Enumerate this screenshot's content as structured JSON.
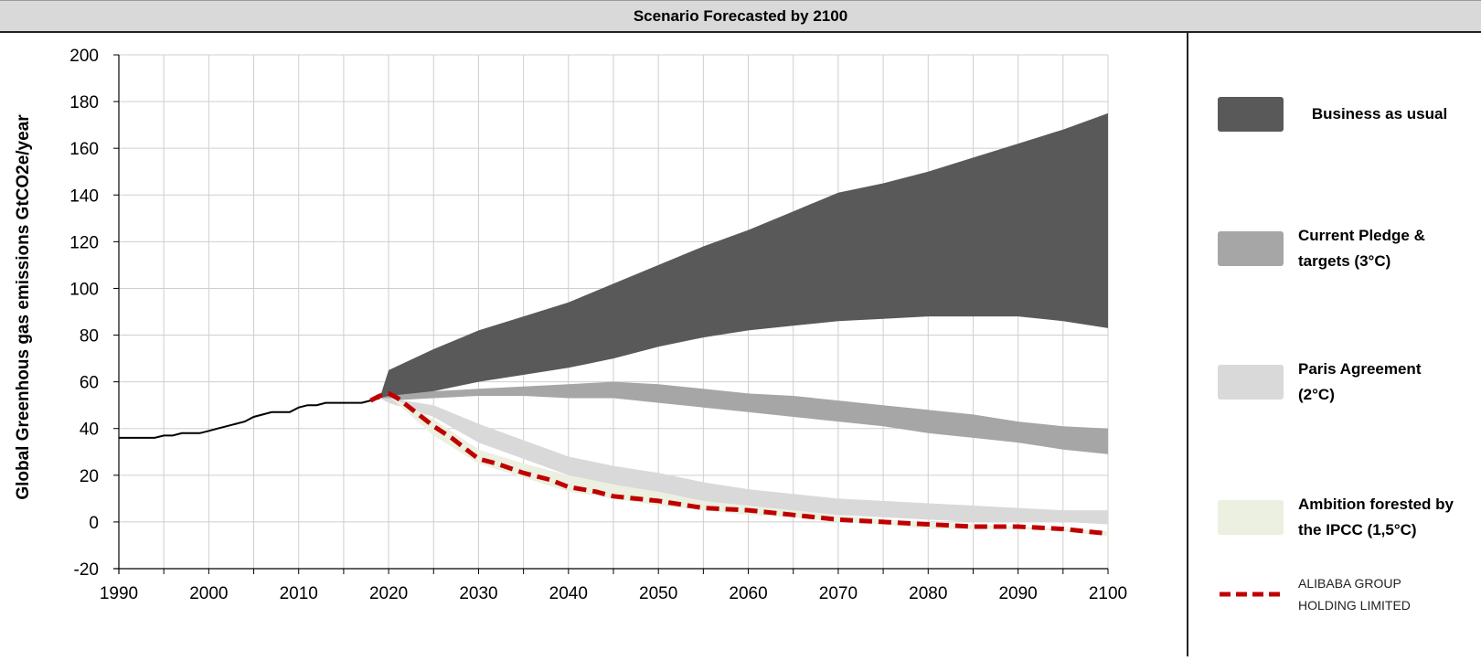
{
  "chart_data": {
    "type": "area",
    "title": "Scenario Forecasted by 2100",
    "xlabel": "",
    "ylabel": "Global Greenhous gas emissions GtCO2e/year",
    "xlim": [
      1990,
      2100
    ],
    "ylim": [
      -20,
      200
    ],
    "x_ticks": [
      1990,
      2000,
      2010,
      2020,
      2030,
      2040,
      2050,
      2060,
      2070,
      2080,
      2090,
      2100
    ],
    "y_ticks": [
      -20,
      0,
      20,
      40,
      60,
      80,
      100,
      120,
      140,
      160,
      180,
      200
    ],
    "grid": true,
    "legend_position": "right",
    "historical": {
      "x": [
        1990,
        1991,
        1992,
        1993,
        1994,
        1995,
        1996,
        1997,
        1998,
        1999,
        2000,
        2001,
        2002,
        2003,
        2004,
        2005,
        2006,
        2007,
        2008,
        2009,
        2010,
        2011,
        2012,
        2013,
        2014,
        2015,
        2016,
        2017,
        2018,
        2019
      ],
      "y": [
        36,
        36,
        36,
        36,
        36,
        37,
        37,
        38,
        38,
        38,
        39,
        40,
        41,
        42,
        43,
        45,
        46,
        47,
        47,
        47,
        49,
        50,
        50,
        51,
        51,
        51,
        51,
        51,
        52,
        53
      ]
    },
    "bands": [
      {
        "name": "Business as usual",
        "color": "#595959",
        "x": [
          2019,
          2020,
          2025,
          2030,
          2035,
          2040,
          2045,
          2050,
          2055,
          2060,
          2065,
          2070,
          2075,
          2080,
          2085,
          2090,
          2095,
          2100
        ],
        "upper": [
          53,
          65,
          74,
          82,
          88,
          94,
          102,
          110,
          118,
          125,
          133,
          141,
          145,
          150,
          156,
          162,
          168,
          175
        ],
        "lower": [
          53,
          53,
          56,
          60,
          63,
          66,
          70,
          75,
          79,
          82,
          84,
          86,
          87,
          88,
          88,
          88,
          86,
          83
        ]
      },
      {
        "name": "Current Pledge & targets (3°C)",
        "color": "#a6a6a6",
        "x": [
          2019,
          2020,
          2025,
          2030,
          2035,
          2040,
          2045,
          2050,
          2055,
          2060,
          2065,
          2070,
          2075,
          2080,
          2085,
          2090,
          2095,
          2100
        ],
        "upper": [
          53,
          54,
          56,
          57,
          58,
          59,
          60,
          59,
          57,
          55,
          54,
          52,
          50,
          48,
          46,
          43,
          41,
          40
        ],
        "lower": [
          53,
          52,
          53,
          54,
          54,
          53,
          53,
          51,
          49,
          47,
          45,
          43,
          41,
          38,
          36,
          34,
          31,
          29
        ]
      },
      {
        "name": "Paris Agreement (2°C)",
        "color": "#d9d9d9",
        "x": [
          2019,
          2020,
          2025,
          2030,
          2035,
          2040,
          2045,
          2050,
          2055,
          2060,
          2065,
          2070,
          2075,
          2080,
          2085,
          2090,
          2095,
          2100
        ],
        "upper": [
          53,
          53,
          50,
          42,
          35,
          28,
          24,
          21,
          17,
          14,
          12,
          10,
          9,
          8,
          7,
          6,
          5,
          5
        ],
        "lower": [
          53,
          51,
          45,
          34,
          27,
          20,
          16,
          12,
          8,
          6,
          4,
          3,
          2,
          1,
          0,
          0,
          0,
          -1
        ]
      },
      {
        "name": "Ambition forested by the IPCC (1,5°C)",
        "color": "#ebf0e0",
        "x": [
          2019,
          2020,
          2025,
          2030,
          2035,
          2040,
          2045,
          2050,
          2055,
          2060,
          2065,
          2070,
          2075,
          2080,
          2085,
          2090,
          2095,
          2100
        ],
        "upper": [
          53,
          54,
          44,
          31,
          25,
          20,
          16,
          13,
          9,
          7,
          5,
          3,
          1,
          0,
          -1,
          -2,
          -3,
          -4
        ],
        "lower": [
          53,
          54,
          37,
          25,
          19,
          13,
          10,
          7,
          5,
          3,
          2,
          0,
          -1,
          -3,
          -3,
          -3,
          -4,
          -6
        ]
      }
    ],
    "series": [
      {
        "name": "ALIBABA GROUP HOLDING LIMITED",
        "color": "#c00000",
        "style": "dashed",
        "x": [
          2018,
          2019,
          2020,
          2021,
          2023,
          2025,
          2027,
          2029,
          2030,
          2032,
          2035,
          2038,
          2040,
          2043,
          2045,
          2050,
          2055,
          2060,
          2065,
          2070,
          2075,
          2080,
          2085,
          2090,
          2095,
          2100
        ],
        "y": [
          52,
          54,
          55,
          53,
          47,
          41,
          36,
          30,
          27,
          25,
          21,
          18,
          15,
          13,
          11,
          9,
          6,
          5,
          3,
          1,
          0,
          -1,
          -2,
          -2,
          -3,
          -5
        ]
      }
    ]
  },
  "legend": {
    "bau": {
      "label": "Business as usual",
      "color": "#595959"
    },
    "pledge": {
      "label": "Current Pledge &\ntargets (3°C)",
      "color": "#a6a6a6"
    },
    "paris": {
      "label": "Paris Agreement\n(2°C)",
      "color": "#d9d9d9"
    },
    "ipcc": {
      "label": "Ambition forested by\nthe IPCC (1,5°C)",
      "color": "#ebf0e0"
    },
    "alibaba": {
      "label": "ALIBABA GROUP\nHOLDING LIMITED",
      "color": "#c00000"
    }
  }
}
